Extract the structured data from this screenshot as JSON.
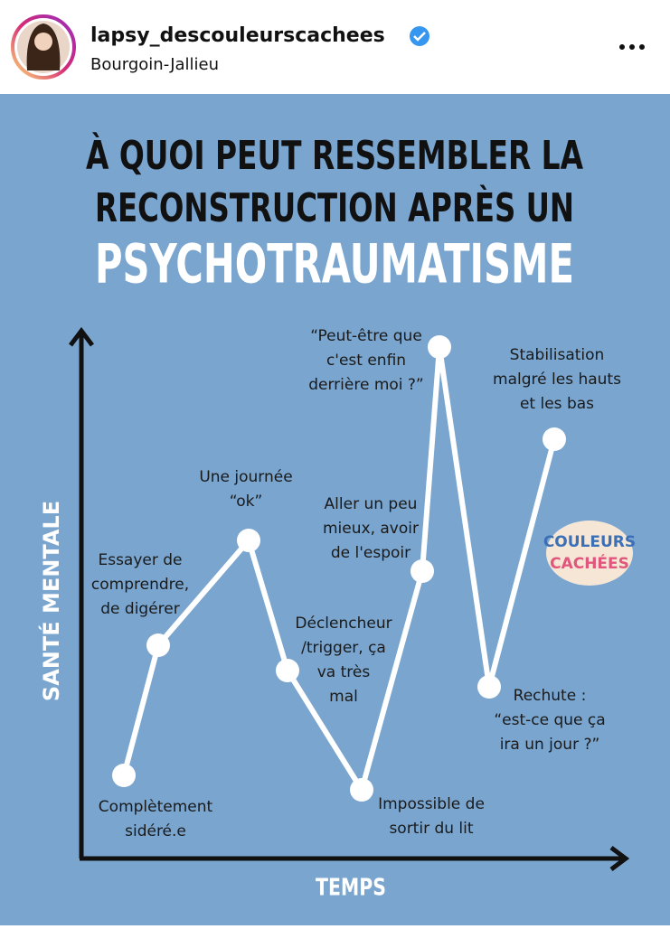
{
  "header": {
    "username": "lapsy_descouleurscachees",
    "location": "Bourgoin-Jallieu"
  },
  "infographic": {
    "title_lines": [
      "À QUOI PEUT RESSEMBLER LA",
      "RECONSTRUCTION APRÈS UN"
    ],
    "highlight": "PSYCHOTRAUMATISME",
    "y_axis_label": "SANTÉ MENTALE",
    "x_axis_label": "TEMPS",
    "stages": [
      {
        "label_lines": [
          "Complètement",
          "sidéré.e"
        ]
      },
      {
        "label_lines": [
          "Essayer de",
          "comprendre,",
          "de digérer"
        ]
      },
      {
        "label_lines": [
          "Une journée",
          "“ok”"
        ]
      },
      {
        "label_lines": [
          "Déclencheur",
          "/trigger, ça",
          "va très",
          "mal"
        ]
      },
      {
        "label_lines": [
          "Impossible de",
          "sortir du lit"
        ]
      },
      {
        "label_lines": [
          "Aller un peu",
          "mieux, avoir",
          "de l'espoir"
        ]
      },
      {
        "label_lines": [
          "“Peut-être que",
          "c'est enfin",
          "derrière moi ?”"
        ]
      },
      {
        "label_lines": [
          "Rechute :",
          "“est-ce que ça",
          "ira un jour ?”"
        ]
      },
      {
        "label_lines": [
          "Stabilisation",
          "malgré les hauts",
          "et les bas"
        ]
      }
    ],
    "logo": [
      "COULEURS",
      "CACHÉES"
    ]
  }
}
